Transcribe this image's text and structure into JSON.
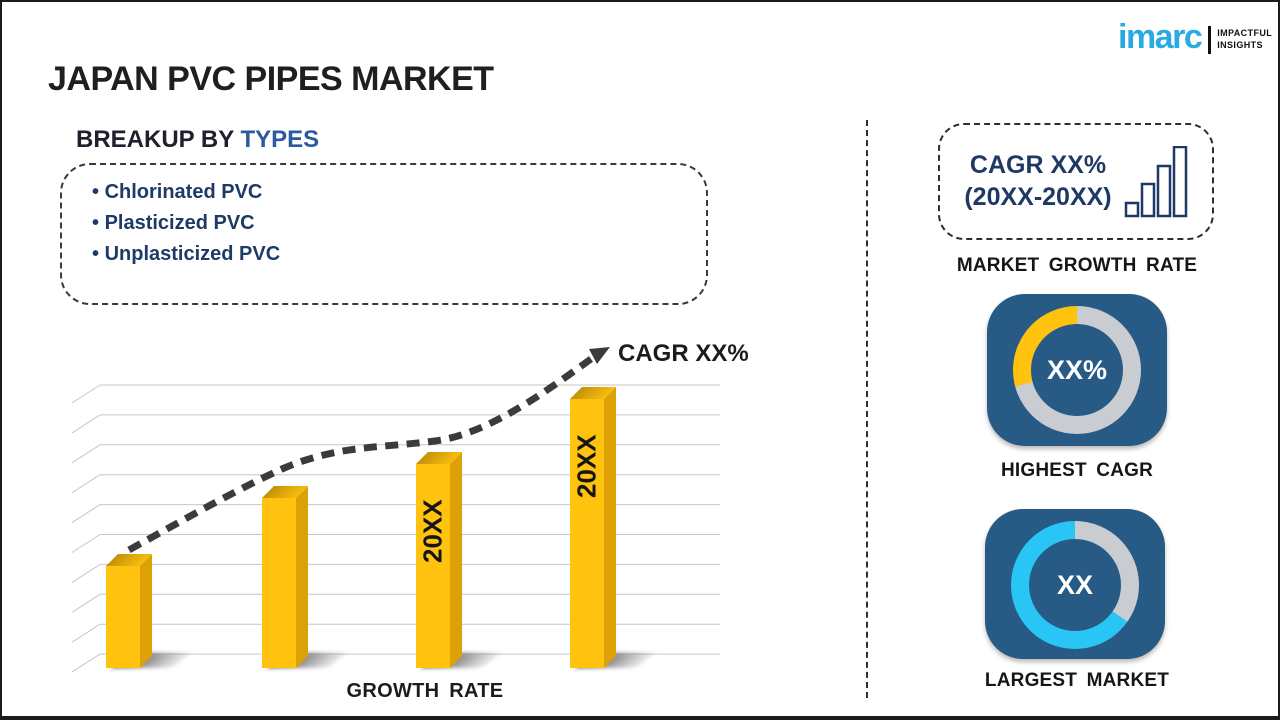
{
  "header": {
    "title": "JAPAN PVC PIPES MARKET"
  },
  "logo": {
    "brand": "imarc",
    "tagline_line1": "IMPACTFUL",
    "tagline_line2": "INSIGHTS"
  },
  "breakup": {
    "heading_prefix": "BREAKUP BY ",
    "heading_highlight": "TYPES",
    "items": [
      "Chlorinated PVC",
      "Plasticized PVC",
      "Unplasticized PVC"
    ]
  },
  "chart_data": {
    "type": "bar",
    "title": "",
    "categories": [
      "",
      "",
      "20XX",
      "20XX"
    ],
    "values": [
      36,
      60,
      72,
      95
    ],
    "bar_color": "#FFC20E",
    "trend_label": "CAGR XX%",
    "xlabel": "GROWTH RATE",
    "ylabel": "",
    "grid": "on",
    "legend": "none"
  },
  "sidebar": {
    "cagr_box": {
      "line1": "CAGR XX%",
      "line2": "(20XX-20XX)",
      "icon": "growth-bars-icon"
    },
    "market_growth_rate_label": "MARKET GROWTH RATE",
    "highest_cagr": {
      "value": "XX%",
      "label": "HIGHEST CAGR",
      "ring": {
        "track_color": "#C9CDD1",
        "segment_color": "#FFC20E",
        "segment_from_deg": 255,
        "segment_to_deg": 360
      }
    },
    "largest_market": {
      "value": "XX",
      "label": "LARGEST MARKET",
      "ring": {
        "track_color": "#29C5F5",
        "segment_color": "#C9CDD1",
        "segment_from_deg": 0,
        "segment_to_deg": 125
      }
    }
  },
  "colors": {
    "brand_blue": "#29ABE2",
    "heading_blue": "#2C5AA0",
    "navy": "#1F3864",
    "accent_gold": "#FFC20E",
    "tile_blue": "#275B85",
    "ring_gray": "#C9CDD1",
    "cyan": "#29C5F5",
    "ink": "#1C1C1C"
  }
}
